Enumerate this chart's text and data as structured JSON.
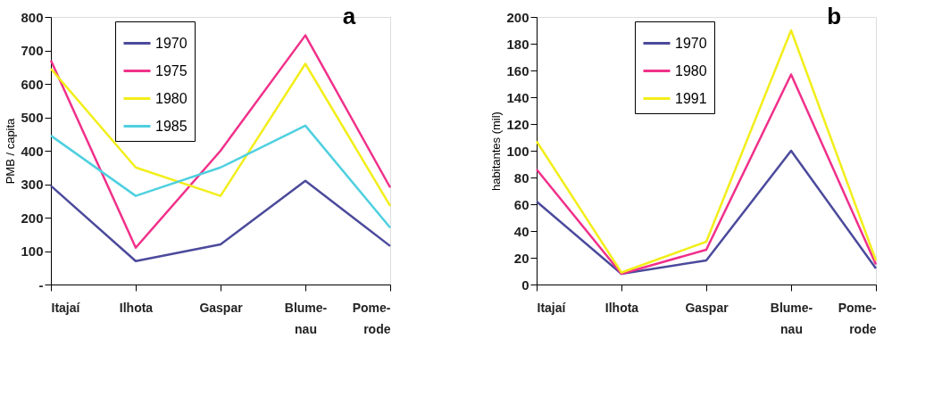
{
  "chart_data": [
    {
      "type": "line",
      "title": "a",
      "ylabel": "PMB / capita",
      "categories": [
        "Itajaí",
        "Ilhota",
        "Gaspar",
        "Blume-\nnau",
        "Pome-\nrode"
      ],
      "series": [
        {
          "name": "1970",
          "color": "#4b4a9c",
          "values": [
            295,
            70,
            120,
            310,
            115
          ]
        },
        {
          "name": "1975",
          "color": "#f0308a",
          "values": [
            670,
            110,
            400,
            745,
            290
          ]
        },
        {
          "name": "1980",
          "color": "#f2ee1a",
          "values": [
            645,
            350,
            265,
            660,
            235
          ]
        },
        {
          "name": "1985",
          "color": "#4fd0e0",
          "values": [
            445,
            265,
            350,
            475,
            170
          ]
        }
      ],
      "ylim": [
        0,
        800
      ],
      "yticks": [
        {
          "value": 0,
          "label": "-"
        },
        100,
        200,
        300,
        400,
        500,
        600,
        700,
        800
      ],
      "grid": false,
      "legend": "top left",
      "marker": "none",
      "line_style": "solid"
    },
    {
      "type": "line",
      "title": "b",
      "ylabel": "habitantes (mil)",
      "categories": [
        "Itajaí",
        "Ilhota",
        "Gaspar",
        "Blume-\nnau",
        "Pome-\nrode"
      ],
      "series": [
        {
          "name": "1970",
          "color": "#4b4a9c",
          "values": [
            62,
            8,
            18,
            100,
            12
          ]
        },
        {
          "name": "1980",
          "color": "#f0308a",
          "values": [
            86,
            8,
            26,
            157,
            15
          ]
        },
        {
          "name": "1991",
          "color": "#f2ee1a",
          "values": [
            107,
            9,
            32,
            190,
            18
          ]
        }
      ],
      "ylim": [
        0,
        200
      ],
      "yticks": [
        0,
        20,
        40,
        60,
        80,
        100,
        120,
        140,
        160,
        180,
        200
      ],
      "grid": false,
      "legend": "top left",
      "marker": "none",
      "line_style": "solid"
    }
  ]
}
